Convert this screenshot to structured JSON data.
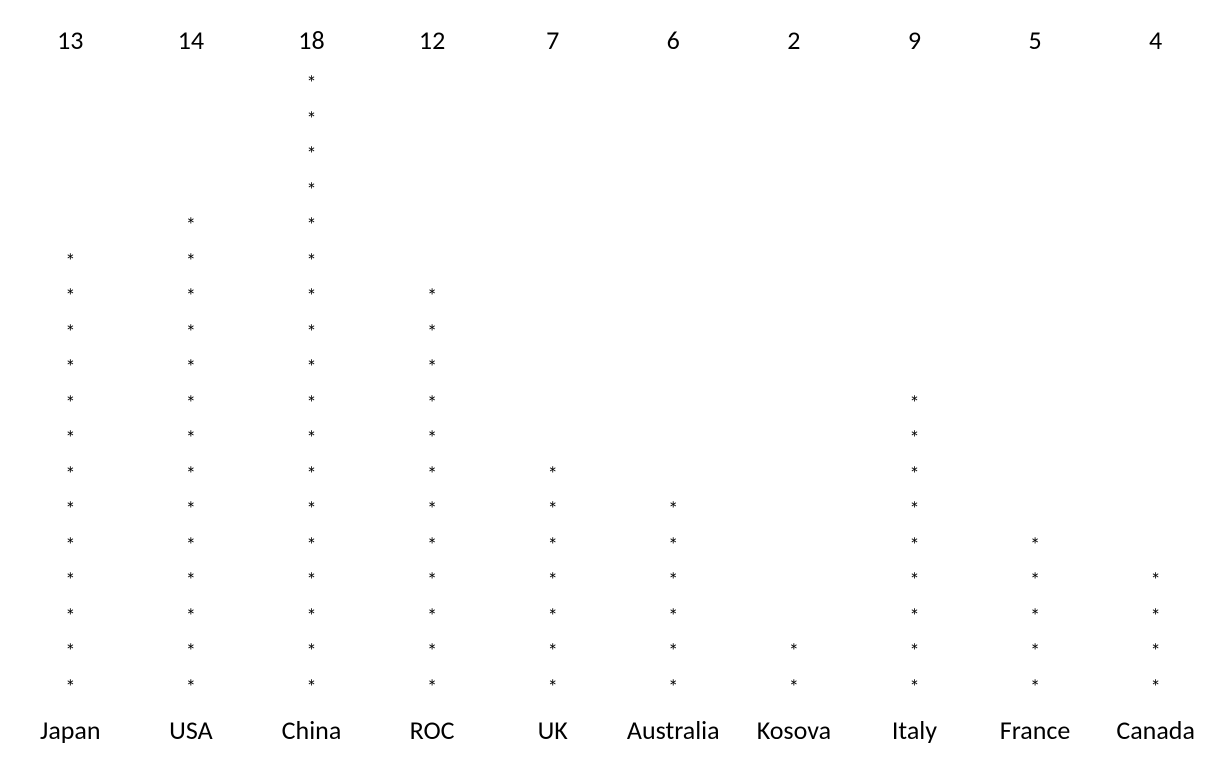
{
  "chart": {
    "type": "pictogram-bar",
    "marker": "*",
    "marker_color": "#000000",
    "marker_fontsize": 20,
    "value_fontsize": 26,
    "label_fontsize": 26,
    "text_color": "#000000",
    "background_color": "#ffffff",
    "max_value": 18,
    "row_height": 35.5,
    "columns": [
      {
        "label": "Japan",
        "value": 13
      },
      {
        "label": "USA",
        "value": 14
      },
      {
        "label": "China",
        "value": 18
      },
      {
        "label": "ROC",
        "value": 12
      },
      {
        "label": "UK",
        "value": 7
      },
      {
        "label": "Australia",
        "value": 6
      },
      {
        "label": "Kosova",
        "value": 2
      },
      {
        "label": "Italy",
        "value": 9
      },
      {
        "label": "France",
        "value": 5
      },
      {
        "label": "Canada",
        "value": 4
      }
    ]
  }
}
